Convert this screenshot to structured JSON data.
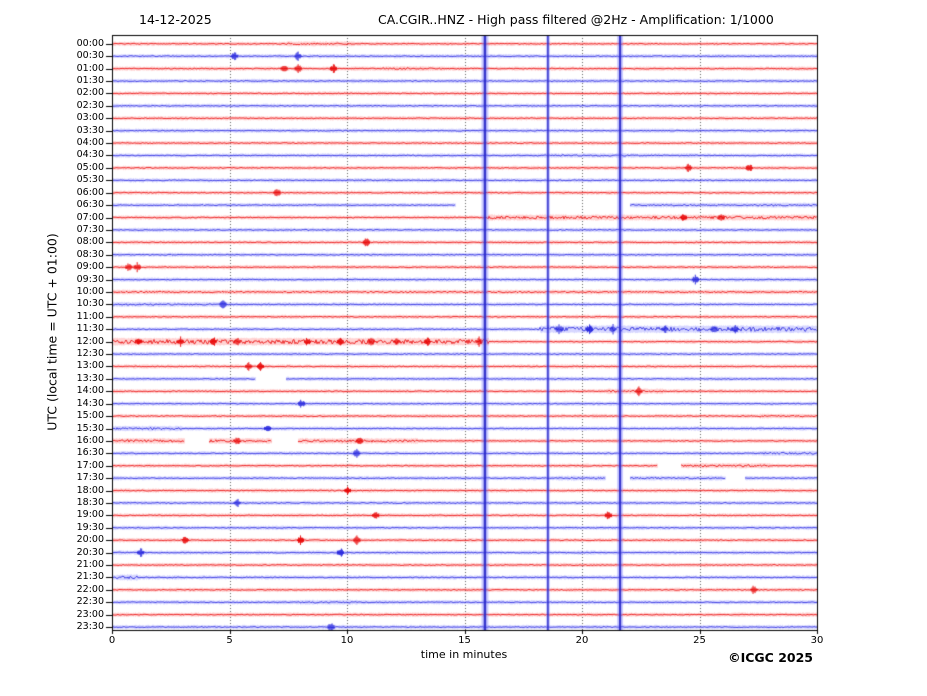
{
  "chart_data": {
    "type": "line",
    "subtype": "helicorder-dayplot",
    "date": "14-12-2025",
    "title": "CA.CGIR..HNZ - High pass filtered @2Hz - Amplification: 1/1000",
    "xlabel": "time in minutes",
    "ylabel": "UTC (local time = UTC + 01:00)",
    "copyright": "©ICGC 2025",
    "x_range": [
      0,
      30
    ],
    "x_ticks": [
      0,
      5,
      10,
      15,
      20,
      25,
      30
    ],
    "grid_minutes": [
      5,
      10,
      15,
      20,
      25
    ],
    "grid_style": "dotted-gray",
    "background": "#ffffff",
    "colors": {
      "red": "#e80000",
      "blue": "#2020dd",
      "red_halo": "rgba(255,100,100,0.28)",
      "blue_halo": "rgba(110,110,255,0.28)",
      "vline": "rgba(40,40,200,0.9)",
      "vline_halo": "rgba(130,130,255,0.4)",
      "frame": "#000000",
      "grid": "#666666"
    },
    "color_rule": "traces alternate red (on the hour) and blue (on the half hour), starting red at 00:00",
    "minutes_per_row": 30,
    "vertical_lines": [
      {
        "minute": 15.87,
        "core": 2.5,
        "halo": 7
      },
      {
        "minute": 18.55,
        "core": 1.6,
        "halo": 4
      },
      {
        "minute": 21.62,
        "core": 2.2,
        "halo": 6
      }
    ],
    "rows": [
      {
        "t": "00:00",
        "noisy": [
          [
            7.4,
            10.2,
            0.9
          ]
        ]
      },
      {
        "t": "00:30",
        "spikes": [
          5.2,
          7.9
        ]
      },
      {
        "t": "01:00",
        "spikes": [
          7.3,
          7.9,
          9.4
        ],
        "noisy": [
          [
            11.5,
            14.0,
            0.8
          ]
        ]
      },
      {
        "t": "01:30"
      },
      {
        "t": "02:00"
      },
      {
        "t": "02:30"
      },
      {
        "t": "03:00"
      },
      {
        "t": "03:30"
      },
      {
        "t": "04:00"
      },
      {
        "t": "04:30",
        "noisy": [
          [
            18.0,
            25.0,
            0.7
          ]
        ]
      },
      {
        "t": "05:00",
        "spikes": [
          24.5,
          27.1
        ]
      },
      {
        "t": "05:30"
      },
      {
        "t": "06:00",
        "spikes": [
          7.0
        ]
      },
      {
        "t": "06:30",
        "gaps": [
          [
            14.6,
            22.0
          ]
        ],
        "noisy": [
          [
            22.0,
            30.0,
            0.8
          ]
        ]
      },
      {
        "t": "07:00",
        "noisy": [
          [
            16.0,
            30.0,
            1.4
          ]
        ],
        "spikes": [
          24.3,
          25.9
        ]
      },
      {
        "t": "07:30"
      },
      {
        "t": "08:00",
        "spikes": [
          10.8
        ]
      },
      {
        "t": "08:30"
      },
      {
        "t": "09:00",
        "spikes": [
          0.7,
          1.05
        ]
      },
      {
        "t": "09:30",
        "spikes": [
          24.8
        ]
      },
      {
        "t": "10:00",
        "noisy": [
          [
            0.0,
            30.0,
            0.7
          ]
        ]
      },
      {
        "t": "10:30",
        "spikes": [
          4.7
        ],
        "noisy": [
          [
            0.0,
            5.0,
            0.8
          ]
        ]
      },
      {
        "t": "11:00"
      },
      {
        "t": "11:30",
        "noisy": [
          [
            18.2,
            30.0,
            2.2
          ]
        ],
        "spikes": [
          19.0,
          20.3,
          21.3,
          23.5,
          25.6,
          26.5
        ]
      },
      {
        "t": "12:00",
        "noisy": [
          [
            0.0,
            16.0,
            2.2
          ]
        ],
        "spikes": [
          1.1,
          2.9,
          4.3,
          5.3,
          8.3,
          9.7,
          11.0,
          12.1,
          13.4,
          15.6
        ]
      },
      {
        "t": "12:30"
      },
      {
        "t": "13:00",
        "spikes": [
          5.8,
          6.3
        ]
      },
      {
        "t": "13:30",
        "gaps": [
          [
            6.1,
            7.4
          ]
        ]
      },
      {
        "t": "14:00",
        "spikes": [
          22.4
        ],
        "noisy": [
          [
            21.0,
            23.5,
            1.0
          ]
        ]
      },
      {
        "t": "14:30",
        "spikes": [
          8.05
        ]
      },
      {
        "t": "15:00",
        "noisy": [
          [
            27.5,
            29.5,
            0.8
          ]
        ]
      },
      {
        "t": "15:30",
        "noisy": [
          [
            0.0,
            3.0,
            1.0
          ]
        ],
        "spikes": [
          6.6
        ]
      },
      {
        "t": "16:00",
        "noisy": [
          [
            0.0,
            13.0,
            1.2
          ]
        ],
        "gaps": [
          [
            3.1,
            4.1
          ],
          [
            6.8,
            7.9
          ]
        ],
        "spikes": [
          5.3,
          10.5
        ]
      },
      {
        "t": "16:30",
        "noisy": [
          [
            27.5,
            30.0,
            1.0
          ]
        ],
        "spikes": [
          10.4
        ]
      },
      {
        "t": "17:00",
        "gaps": [
          [
            23.2,
            24.2
          ]
        ],
        "noisy": [
          [
            24.2,
            28.0,
            1.0
          ]
        ]
      },
      {
        "t": "17:30",
        "gaps": [
          [
            21.0,
            22.0
          ],
          [
            26.1,
            26.9
          ]
        ],
        "noisy": [
          [
            19.0,
            26.0,
            0.8
          ]
        ]
      },
      {
        "t": "18:00",
        "spikes": [
          10.0
        ]
      },
      {
        "t": "18:30",
        "spikes": [
          5.3
        ]
      },
      {
        "t": "19:00",
        "spikes": [
          11.2,
          21.1
        ]
      },
      {
        "t": "19:30"
      },
      {
        "t": "20:00",
        "spikes": [
          3.1,
          8.0,
          10.4
        ]
      },
      {
        "t": "20:30",
        "spikes": [
          1.2,
          9.7
        ]
      },
      {
        "t": "21:00"
      },
      {
        "t": "21:30",
        "noisy": [
          [
            0.2,
            1.1,
            1.5
          ]
        ]
      },
      {
        "t": "22:00",
        "spikes": [
          27.3
        ]
      },
      {
        "t": "22:30",
        "noisy": [
          [
            8.0,
            10.5,
            0.8
          ]
        ]
      },
      {
        "t": "23:00"
      },
      {
        "t": "23:30",
        "spikes": [
          9.3
        ]
      }
    ]
  }
}
